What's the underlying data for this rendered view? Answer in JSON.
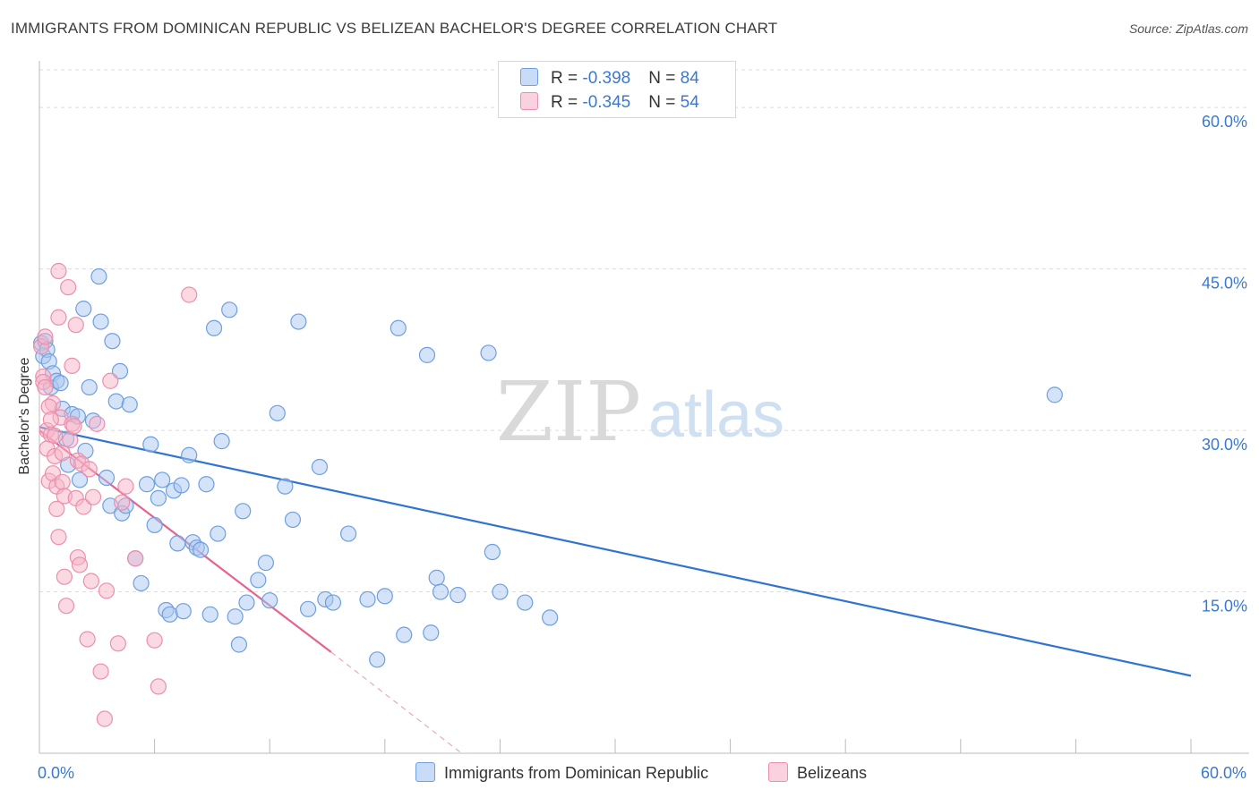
{
  "header": {
    "title": "IMMIGRANTS FROM DOMINICAN REPUBLIC VS BELIZEAN BACHELOR'S DEGREE CORRELATION CHART",
    "source": "Source: ZipAtlas.com"
  },
  "watermark": {
    "zip": "ZIP",
    "atlas": "atlas"
  },
  "legend": {
    "series1": {
      "r_label": "R = ",
      "r_value": "-0.398",
      "n_label": "N = ",
      "n_value": "84",
      "color": "#a9c7f0"
    },
    "series2": {
      "r_label": "R = ",
      "r_value": "-0.345",
      "n_label": "N = ",
      "n_value": "54",
      "color": "#f5b3c8"
    }
  },
  "chart_data": {
    "type": "scatter",
    "ylabel": "Bachelor's Degree",
    "xlim": [
      0,
      60
    ],
    "ylim": [
      0,
      65
    ],
    "x_tick_labels": [
      {
        "value": 0,
        "label": "0.0%"
      },
      {
        "value": 60,
        "label": "60.0%"
      }
    ],
    "y_tick_labels": [
      {
        "value": 15,
        "label": "15.0%"
      },
      {
        "value": 30,
        "label": "30.0%"
      },
      {
        "value": 45,
        "label": "45.0%"
      },
      {
        "value": 60,
        "label": "60.0%"
      }
    ],
    "grid": true,
    "legend_position": "top-center",
    "series": [
      {
        "name": "Immigrants from Dominican Republic",
        "color": "#a9c7f0",
        "stroke": "#6e9fe0",
        "line_color": "#2f74d0",
        "trend": {
          "x": [
            0,
            60
          ],
          "y": [
            30.3,
            7.2
          ]
        },
        "points": [
          [
            0.1,
            38.1
          ],
          [
            0.2,
            36.9
          ],
          [
            0.3,
            38.3
          ],
          [
            0.4,
            37.5
          ],
          [
            0.5,
            36.4
          ],
          [
            0.6,
            34.0
          ],
          [
            0.7,
            35.3
          ],
          [
            0.9,
            34.6
          ],
          [
            1.1,
            34.4
          ],
          [
            1.2,
            32.0
          ],
          [
            1.4,
            29.2
          ],
          [
            1.5,
            26.8
          ],
          [
            1.7,
            31.5
          ],
          [
            2.0,
            31.3
          ],
          [
            2.1,
            25.4
          ],
          [
            2.3,
            41.3
          ],
          [
            2.4,
            28.1
          ],
          [
            2.6,
            34.0
          ],
          [
            2.8,
            30.9
          ],
          [
            3.1,
            44.3
          ],
          [
            3.2,
            40.1
          ],
          [
            3.5,
            25.6
          ],
          [
            3.7,
            23.0
          ],
          [
            3.8,
            38.3
          ],
          [
            4.0,
            32.7
          ],
          [
            4.2,
            35.5
          ],
          [
            4.3,
            22.3
          ],
          [
            4.5,
            23.0
          ],
          [
            4.7,
            32.4
          ],
          [
            5.0,
            18.1
          ],
          [
            5.3,
            15.8
          ],
          [
            5.6,
            25.0
          ],
          [
            5.8,
            28.7
          ],
          [
            6.0,
            21.2
          ],
          [
            6.2,
            23.7
          ],
          [
            6.4,
            25.4
          ],
          [
            6.6,
            13.3
          ],
          [
            6.8,
            12.9
          ],
          [
            7.0,
            24.4
          ],
          [
            7.2,
            19.5
          ],
          [
            7.4,
            24.9
          ],
          [
            7.5,
            13.2
          ],
          [
            7.8,
            27.7
          ],
          [
            8.0,
            19.6
          ],
          [
            8.2,
            19.1
          ],
          [
            8.4,
            18.9
          ],
          [
            8.7,
            25.0
          ],
          [
            8.9,
            12.9
          ],
          [
            9.1,
            39.5
          ],
          [
            9.3,
            20.4
          ],
          [
            9.5,
            29.0
          ],
          [
            9.9,
            41.2
          ],
          [
            10.2,
            12.7
          ],
          [
            10.4,
            10.1
          ],
          [
            10.6,
            22.5
          ],
          [
            10.8,
            14.0
          ],
          [
            11.4,
            16.1
          ],
          [
            11.8,
            17.7
          ],
          [
            12.0,
            14.2
          ],
          [
            12.4,
            31.6
          ],
          [
            12.8,
            24.8
          ],
          [
            13.2,
            21.7
          ],
          [
            13.5,
            40.1
          ],
          [
            14.0,
            13.4
          ],
          [
            14.6,
            26.6
          ],
          [
            14.9,
            14.3
          ],
          [
            15.3,
            14.0
          ],
          [
            16.1,
            20.4
          ],
          [
            17.1,
            14.3
          ],
          [
            17.6,
            8.7
          ],
          [
            18.0,
            14.6
          ],
          [
            18.7,
            39.5
          ],
          [
            19.0,
            11.0
          ],
          [
            20.2,
            37.0
          ],
          [
            20.4,
            11.2
          ],
          [
            20.7,
            16.3
          ],
          [
            20.9,
            15.0
          ],
          [
            21.8,
            14.7
          ],
          [
            23.4,
            37.2
          ],
          [
            23.6,
            18.7
          ],
          [
            24.0,
            15.0
          ],
          [
            25.3,
            14.0
          ],
          [
            26.6,
            12.6
          ],
          [
            52.9,
            33.3
          ]
        ]
      },
      {
        "name": "Belizeans",
        "color": "#f5b3c8",
        "stroke": "#ec8fad",
        "line_color": "#e8628e",
        "trend": {
          "x": [
            0,
            15.2
          ],
          "y": [
            30.0,
            9.4
          ]
        },
        "trend_dashed": {
          "x": [
            15.2,
            22.0
          ],
          "y": [
            9.4,
            0.0
          ]
        },
        "points": [
          [
            0.1,
            37.8
          ],
          [
            0.2,
            35.0
          ],
          [
            0.2,
            34.5
          ],
          [
            0.3,
            38.7
          ],
          [
            0.4,
            30.0
          ],
          [
            0.4,
            28.3
          ],
          [
            0.5,
            25.3
          ],
          [
            0.6,
            29.6
          ],
          [
            0.7,
            32.5
          ],
          [
            0.7,
            26.0
          ],
          [
            0.8,
            27.6
          ],
          [
            0.9,
            24.8
          ],
          [
            0.9,
            22.7
          ],
          [
            1.0,
            44.8
          ],
          [
            1.0,
            40.5
          ],
          [
            1.0,
            20.1
          ],
          [
            1.1,
            31.2
          ],
          [
            1.2,
            25.2
          ],
          [
            1.3,
            23.9
          ],
          [
            1.3,
            16.4
          ],
          [
            1.4,
            13.7
          ],
          [
            1.5,
            43.3
          ],
          [
            1.6,
            29.1
          ],
          [
            1.7,
            36.0
          ],
          [
            1.7,
            30.6
          ],
          [
            1.8,
            30.4
          ],
          [
            1.9,
            39.8
          ],
          [
            1.9,
            23.7
          ],
          [
            2.0,
            27.2
          ],
          [
            2.0,
            18.2
          ],
          [
            2.1,
            17.5
          ],
          [
            2.2,
            26.9
          ],
          [
            2.3,
            22.9
          ],
          [
            2.5,
            10.6
          ],
          [
            2.6,
            26.4
          ],
          [
            2.7,
            16.0
          ],
          [
            2.8,
            23.8
          ],
          [
            3.0,
            30.6
          ],
          [
            3.2,
            7.6
          ],
          [
            3.4,
            3.2
          ],
          [
            3.5,
            15.1
          ],
          [
            3.7,
            34.6
          ],
          [
            4.1,
            10.2
          ],
          [
            4.3,
            23.3
          ],
          [
            4.5,
            24.8
          ],
          [
            5.0,
            18.1
          ],
          [
            6.0,
            10.5
          ],
          [
            6.2,
            6.2
          ],
          [
            7.8,
            42.6
          ],
          [
            0.3,
            34.0
          ],
          [
            0.5,
            32.2
          ],
          [
            0.8,
            29.5
          ],
          [
            1.2,
            27.9
          ],
          [
            0.6,
            31.0
          ]
        ]
      }
    ]
  }
}
